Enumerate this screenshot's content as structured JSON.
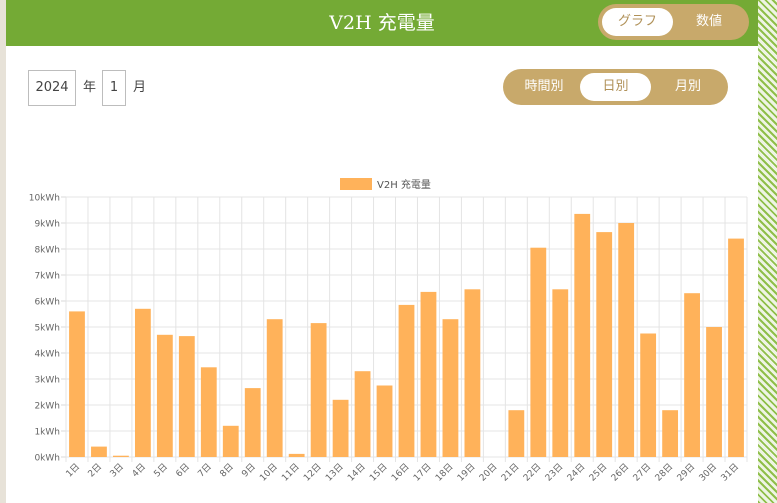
{
  "header": {
    "title": "V2H 充電量"
  },
  "view_toggle": {
    "options": [
      "グラフ",
      "数値"
    ],
    "selected": "グラフ"
  },
  "filters": {
    "year": "2024",
    "year_unit": "年",
    "month": "1",
    "month_unit": "月"
  },
  "period_toggle": {
    "options": [
      "時間別",
      "日別",
      "月別"
    ],
    "selected": "日別"
  },
  "colors": {
    "header": "#74aa35",
    "accent": "#c8a96b",
    "bar": "#ffb25a",
    "stripe": "#8fbf4a"
  },
  "chart_data": {
    "type": "bar",
    "legend": "V2H 充電量",
    "legend_position": "top-center",
    "grid": true,
    "categories": [
      "1日",
      "2日",
      "3日",
      "4日",
      "5日",
      "6日",
      "7日",
      "8日",
      "9日",
      "10日",
      "11日",
      "12日",
      "13日",
      "14日",
      "15日",
      "16日",
      "17日",
      "18日",
      "19日",
      "20日",
      "21日",
      "22日",
      "23日",
      "24日",
      "25日",
      "26日",
      "27日",
      "28日",
      "29日",
      "30日",
      "31日"
    ],
    "values": [
      5.6,
      0.4,
      0.05,
      5.7,
      4.7,
      4.65,
      3.45,
      1.2,
      2.65,
      5.3,
      0.12,
      5.15,
      2.2,
      3.3,
      2.75,
      5.85,
      6.35,
      5.3,
      6.45,
      0,
      1.8,
      8.05,
      6.45,
      9.35,
      8.65,
      9.0,
      4.75,
      1.8,
      6.3,
      5.0,
      8.4
    ],
    "ylim": [
      0,
      10
    ],
    "y_ticks": [
      "0kWh",
      "1kWh",
      "2kWh",
      "3kWh",
      "4kWh",
      "5kWh",
      "6kWh",
      "7kWh",
      "8kWh",
      "9kWh",
      "10kWh"
    ]
  }
}
